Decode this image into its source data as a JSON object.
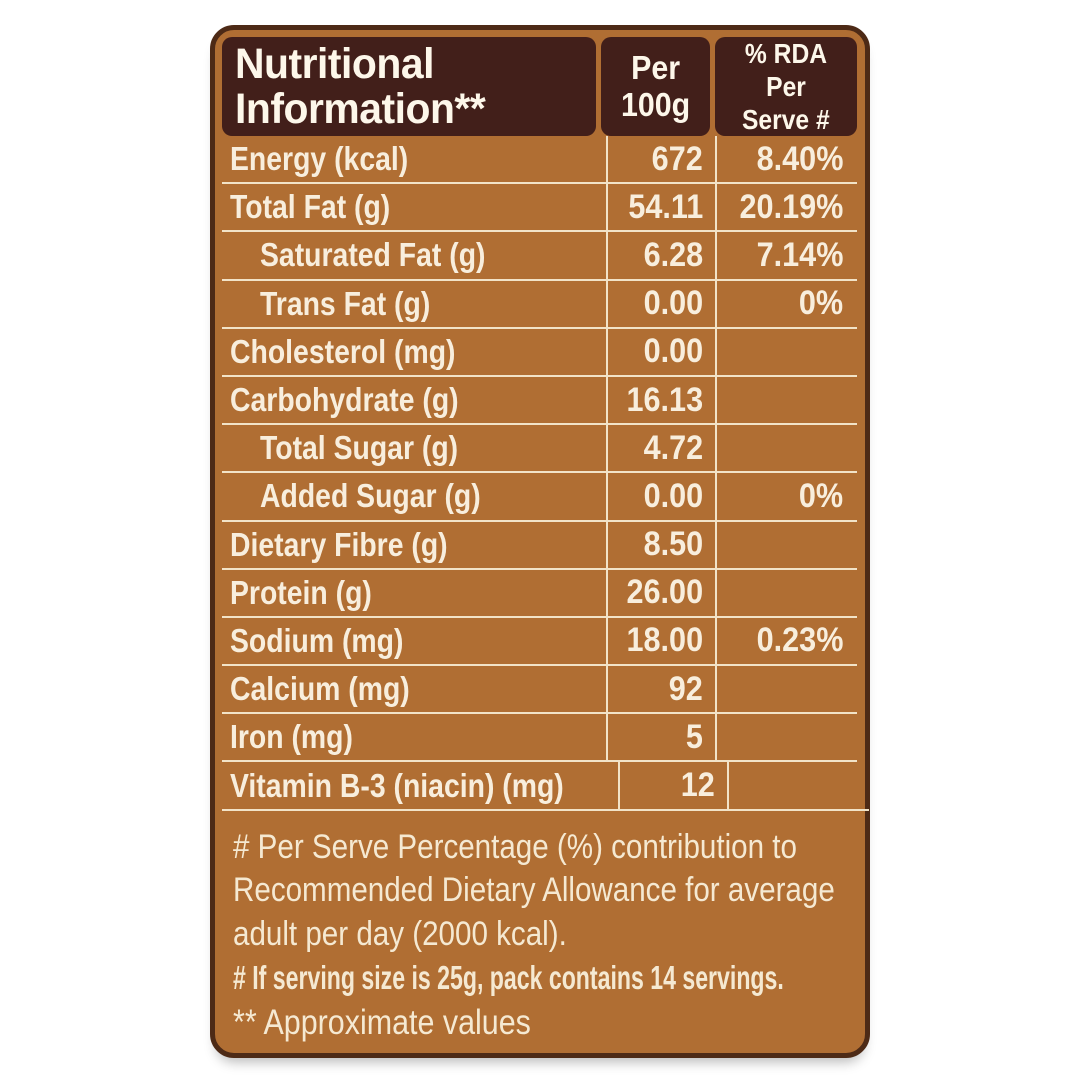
{
  "label": {
    "title": "Nutritional Information**",
    "columns": {
      "per_100g": {
        "line1": "Per",
        "line2": "100g"
      },
      "rda_per_serve": {
        "line1": "% RDA Per",
        "line2": "Serve #"
      }
    },
    "rows": [
      {
        "label": "Energy (kcal)",
        "per100g": "672",
        "rda": "8.40%",
        "indent": false
      },
      {
        "label": "Total Fat (g)",
        "per100g": "54.11",
        "rda": "20.19%",
        "indent": false
      },
      {
        "label": "Saturated Fat (g)",
        "per100g": "6.28",
        "rda": "7.14%",
        "indent": true
      },
      {
        "label": "Trans Fat (g)",
        "per100g": "0.00",
        "rda": "0%",
        "indent": true
      },
      {
        "label": "Cholesterol (mg)",
        "per100g": "0.00",
        "rda": "",
        "indent": false
      },
      {
        "label": "Carbohydrate (g)",
        "per100g": "16.13",
        "rda": "",
        "indent": false
      },
      {
        "label": "Total Sugar (g)",
        "per100g": "4.72",
        "rda": "",
        "indent": true
      },
      {
        "label": "Added Sugar (g)",
        "per100g": "0.00",
        "rda": "0%",
        "indent": true
      },
      {
        "label": "Dietary Fibre (g)",
        "per100g": "8.50",
        "rda": "",
        "indent": false
      },
      {
        "label": "Protein (g)",
        "per100g": "26.00",
        "rda": "",
        "indent": false
      },
      {
        "label": "Sodium (mg)",
        "per100g": "18.00",
        "rda": "0.23%",
        "indent": false
      },
      {
        "label": "Calcium (mg)",
        "per100g": "92",
        "rda": "",
        "indent": false
      },
      {
        "label": "Iron (mg)",
        "per100g": "5",
        "rda": "",
        "indent": false
      },
      {
        "label": "Vitamin B-3 (niacin) (mg)",
        "per100g": "12",
        "rda": "",
        "indent": false
      }
    ],
    "notes": {
      "per_serve_lines": [
        "# Per Serve Percentage (%) contribution to",
        "Recommended Dietary Allowance for average",
        "adult per day (2000 kcal)."
      ],
      "serving_size": "# If serving size is 25g, pack contains 14 servings.",
      "approximate": "** Approximate values"
    }
  },
  "colors": {
    "page_bg": "#ffffff",
    "card_bg": "#b06e33",
    "card_border": "#4d2a16",
    "hdr_bg": "#421f1a",
    "text": "#f8eedd",
    "line": "#f2e3c8"
  }
}
